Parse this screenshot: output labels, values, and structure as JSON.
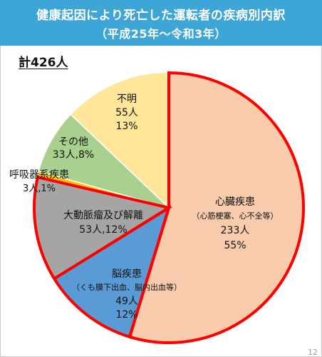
{
  "title": {
    "line1": "健康起因により死亡した運転者の疾病別内訳",
    "line2": "（平成25年～令和3年）"
  },
  "total_label": "計426人",
  "page_number": "12",
  "colors": {
    "title_bg": "#3ea6d6",
    "highlight_outline": "#ff0000"
  },
  "chart_data": {
    "type": "pie",
    "total": 426,
    "unit": "人",
    "slices": [
      {
        "name": "心臓疾患",
        "sub": "（心筋梗塞、心不全等）",
        "count_label": "233人",
        "pct_label": "55%",
        "value": 233,
        "color": "#f8cbad",
        "highlight": true
      },
      {
        "name": "脳疾患",
        "sub": "（くも膜下出血、脳内出血等）",
        "count_label": "49人",
        "pct_label": "12%",
        "value": 49,
        "color": "#5b9bd5",
        "highlight": true
      },
      {
        "name": "大動脈瘤及び解離",
        "sub": "",
        "count_label": "53人,12%",
        "pct_label": "",
        "value": 53,
        "color": "#a5a5a5",
        "highlight": true
      },
      {
        "name": "呼吸器系疾患",
        "sub": "",
        "count_label": "3人,1%",
        "pct_label": "",
        "value": 3,
        "color": "#ffc000",
        "highlight": false
      },
      {
        "name": "その他",
        "sub": "",
        "count_label": "33人,8%",
        "pct_label": "",
        "value": 33,
        "color": "#a9d08e",
        "highlight": false
      },
      {
        "name": "不明",
        "sub": "",
        "count_label": "55人",
        "pct_label": "13%",
        "value": 55,
        "color": "#ffe699",
        "highlight": false
      }
    ]
  }
}
